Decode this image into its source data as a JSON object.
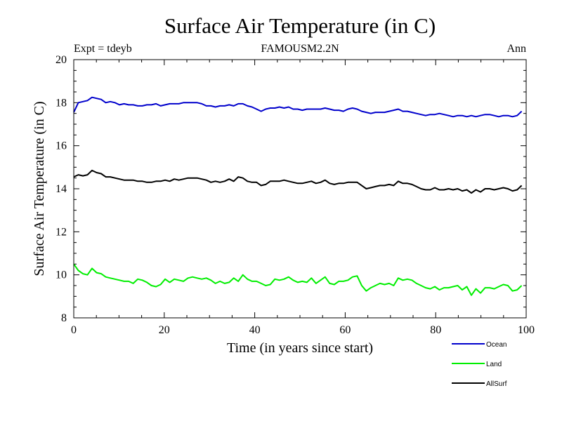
{
  "chart_data": {
    "type": "line",
    "title": "Surface Air Temperature (in C)",
    "subtitle_left": "Expt = tdeyb",
    "subtitle_center": "FAMOUSM2.2N",
    "subtitle_right": "Ann",
    "xlabel": "Time (in years since start)",
    "ylabel": "Surface Air Temperature (in C)",
    "xlim": [
      0,
      100
    ],
    "ylim": [
      8,
      20
    ],
    "x_ticks": [
      "0",
      "20",
      "40",
      "60",
      "80",
      "100"
    ],
    "y_ticks": [
      "8",
      "10",
      "12",
      "14",
      "16",
      "18",
      "20"
    ],
    "legend_position": "bottom-right",
    "series": [
      {
        "name": "Ocean",
        "color": "#0000cc",
        "values": [
          17.55,
          18.0,
          18.05,
          18.1,
          18.25,
          18.2,
          18.15,
          18.0,
          18.05,
          18.0,
          17.9,
          17.95,
          17.9,
          17.9,
          17.85,
          17.85,
          17.9,
          17.9,
          17.95,
          17.85,
          17.9,
          17.95,
          17.95,
          17.95,
          18.0,
          18.0,
          18.0,
          18.0,
          17.95,
          17.85,
          17.85,
          17.8,
          17.85,
          17.85,
          17.9,
          17.85,
          17.95,
          17.95,
          17.85,
          17.8,
          17.7,
          17.6,
          17.7,
          17.75,
          17.75,
          17.8,
          17.75,
          17.8,
          17.7,
          17.7,
          17.65,
          17.7,
          17.7,
          17.7,
          17.7,
          17.75,
          17.7,
          17.65,
          17.65,
          17.6,
          17.7,
          17.75,
          17.7,
          17.6,
          17.55,
          17.5,
          17.55,
          17.55,
          17.55,
          17.6,
          17.65,
          17.7,
          17.6,
          17.6,
          17.55,
          17.5,
          17.45,
          17.4,
          17.45,
          17.45,
          17.5,
          17.45,
          17.4,
          17.35,
          17.4,
          17.4,
          17.35,
          17.4,
          17.35,
          17.4,
          17.45,
          17.45,
          17.4,
          17.35,
          17.4,
          17.4,
          17.35,
          17.4,
          17.6
        ]
      },
      {
        "name": "Land",
        "color": "#00ee00",
        "values": [
          10.5,
          10.2,
          10.05,
          10.0,
          10.3,
          10.1,
          10.05,
          9.9,
          9.85,
          9.8,
          9.75,
          9.7,
          9.7,
          9.6,
          9.8,
          9.75,
          9.65,
          9.5,
          9.45,
          9.55,
          9.8,
          9.65,
          9.8,
          9.75,
          9.7,
          9.85,
          9.9,
          9.85,
          9.8,
          9.85,
          9.75,
          9.6,
          9.7,
          9.6,
          9.65,
          9.85,
          9.7,
          10.0,
          9.8,
          9.7,
          9.7,
          9.6,
          9.5,
          9.55,
          9.8,
          9.75,
          9.8,
          9.9,
          9.75,
          9.65,
          9.7,
          9.65,
          9.85,
          9.6,
          9.75,
          9.9,
          9.6,
          9.55,
          9.7,
          9.7,
          9.75,
          9.9,
          9.95,
          9.5,
          9.25,
          9.4,
          9.5,
          9.6,
          9.55,
          9.6,
          9.5,
          9.85,
          9.75,
          9.8,
          9.75,
          9.6,
          9.5,
          9.4,
          9.35,
          9.45,
          9.3,
          9.4,
          9.4,
          9.45,
          9.5,
          9.3,
          9.45,
          9.05,
          9.35,
          9.15,
          9.4,
          9.4,
          9.35,
          9.45,
          9.55,
          9.5,
          9.25,
          9.3,
          9.5
        ]
      },
      {
        "name": "AllSurf",
        "color": "#000000",
        "values": [
          14.55,
          14.65,
          14.6,
          14.65,
          14.85,
          14.75,
          14.7,
          14.55,
          14.55,
          14.5,
          14.45,
          14.4,
          14.4,
          14.4,
          14.35,
          14.35,
          14.3,
          14.3,
          14.35,
          14.35,
          14.4,
          14.35,
          14.45,
          14.4,
          14.45,
          14.5,
          14.5,
          14.5,
          14.45,
          14.4,
          14.3,
          14.35,
          14.3,
          14.35,
          14.45,
          14.35,
          14.55,
          14.5,
          14.35,
          14.3,
          14.3,
          14.15,
          14.2,
          14.35,
          14.35,
          14.35,
          14.4,
          14.35,
          14.3,
          14.25,
          14.25,
          14.3,
          14.35,
          14.25,
          14.3,
          14.4,
          14.25,
          14.2,
          14.25,
          14.25,
          14.3,
          14.3,
          14.3,
          14.15,
          14.0,
          14.05,
          14.1,
          14.15,
          14.15,
          14.2,
          14.15,
          14.35,
          14.25,
          14.25,
          14.2,
          14.1,
          14.0,
          13.95,
          13.95,
          14.05,
          13.95,
          13.95,
          14.0,
          13.95,
          14.0,
          13.9,
          13.95,
          13.8,
          13.95,
          13.85,
          14.0,
          14.0,
          13.95,
          14.0,
          14.05,
          14.0,
          13.9,
          13.95,
          14.15
        ]
      }
    ]
  }
}
